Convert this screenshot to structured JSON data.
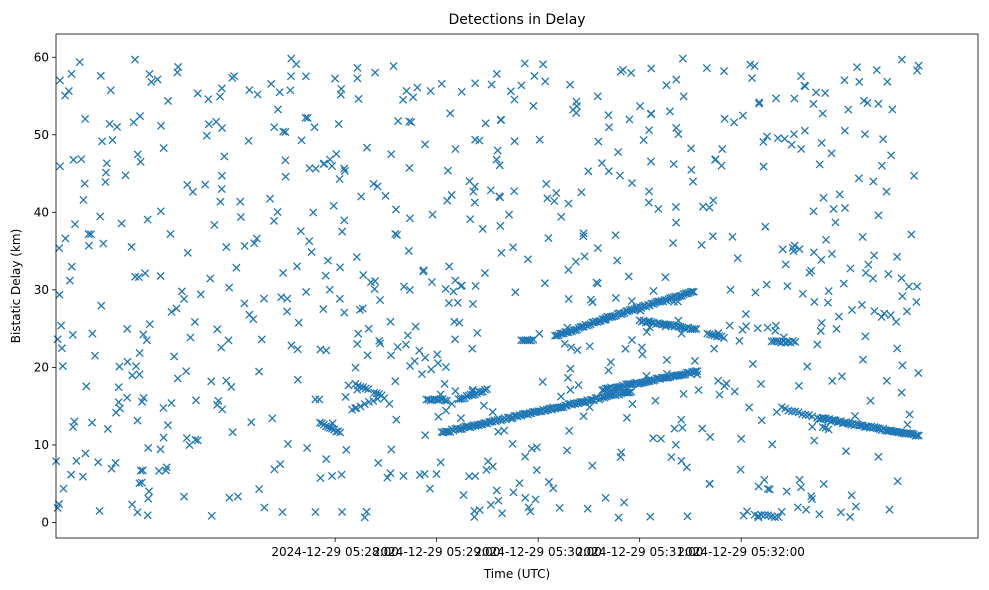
{
  "chart_data": {
    "type": "scatter",
    "title": "Detections in Delay",
    "xlabel": "Time (UTC)",
    "ylabel": "Bistatic Delay (km)",
    "marker": "x",
    "color": "#1f77b4",
    "xlim_seconds": [
      -165,
      380
    ],
    "ylim": [
      -2,
      63
    ],
    "x_ticks": [
      {
        "value": 0,
        "label": "2024-12-29 05:28:00"
      },
      {
        "value": 60,
        "label": "2024-12-29 05:29:00"
      },
      {
        "value": 120,
        "label": "2024-12-29 05:30:00"
      },
      {
        "value": 180,
        "label": "2024-12-29 05:31:00"
      },
      {
        "value": 240,
        "label": "2024-12-29 05:32:00"
      }
    ],
    "y_ticks": [
      {
        "value": 0,
        "label": "0"
      },
      {
        "value": 10,
        "label": "10"
      },
      {
        "value": 20,
        "label": "20"
      },
      {
        "value": 30,
        "label": "30"
      },
      {
        "value": 40,
        "label": "40"
      },
      {
        "value": 50,
        "label": "50"
      },
      {
        "value": 60,
        "label": "60"
      }
    ],
    "x_units": "seconds relative to 2024-12-29 05:28:00 UTC",
    "track_segments": [
      {
        "x0": -9,
        "x1": 4,
        "y0": 12.8,
        "y1": 11.5,
        "step": 1.2
      },
      {
        "x0": 10,
        "x1": 25,
        "y0": 14.5,
        "y1": 16.0,
        "step": 2.5
      },
      {
        "x0": 12,
        "x1": 20,
        "y0": 17.8,
        "y1": 17.0,
        "step": 1.5
      },
      {
        "x0": 23,
        "x1": 30,
        "y0": 16.8,
        "y1": 16.0,
        "step": 1.5
      },
      {
        "x0": 54,
        "x1": 67,
        "y0": 15.8,
        "y1": 15.8,
        "step": 1.2
      },
      {
        "x0": 63,
        "x1": 175,
        "y0": 11.6,
        "y1": 16.9,
        "step": 1.0
      },
      {
        "x0": 73,
        "x1": 90,
        "y0": 15.8,
        "y1": 17.2,
        "step": 1.2
      },
      {
        "x0": 158,
        "x1": 214,
        "y0": 17.1,
        "y1": 19.5,
        "step": 1.0
      },
      {
        "x0": 110,
        "x1": 118,
        "y0": 23.5,
        "y1": 23.5,
        "step": 1.2
      },
      {
        "x0": 130,
        "x1": 160,
        "y0": 24.0,
        "y1": 26.3,
        "step": 1.0
      },
      {
        "x0": 159,
        "x1": 212,
        "y0": 26.3,
        "y1": 29.8,
        "step": 1.0
      },
      {
        "x0": 180,
        "x1": 214,
        "y0": 26.0,
        "y1": 24.9,
        "step": 1.2
      },
      {
        "x0": 220,
        "x1": 230,
        "y0": 24.5,
        "y1": 23.8,
        "step": 1.4
      },
      {
        "x0": 258,
        "x1": 272,
        "y0": 23.3,
        "y1": 23.3,
        "step": 1.4
      },
      {
        "x0": 264,
        "x1": 282,
        "y0": 14.8,
        "y1": 13.6,
        "step": 2.0
      },
      {
        "x0": 285,
        "x1": 345,
        "y0": 13.5,
        "y1": 11.2,
        "step": 1.0
      },
      {
        "x0": 248,
        "x1": 262,
        "y0": 1.0,
        "y1": 0.7,
        "step": 2.0
      }
    ],
    "noise_points": {
      "count": 780,
      "x_range": [
        -170,
        345
      ],
      "y_range": [
        0.5,
        60
      ],
      "distribution": "approximately uniform clutter"
    }
  }
}
